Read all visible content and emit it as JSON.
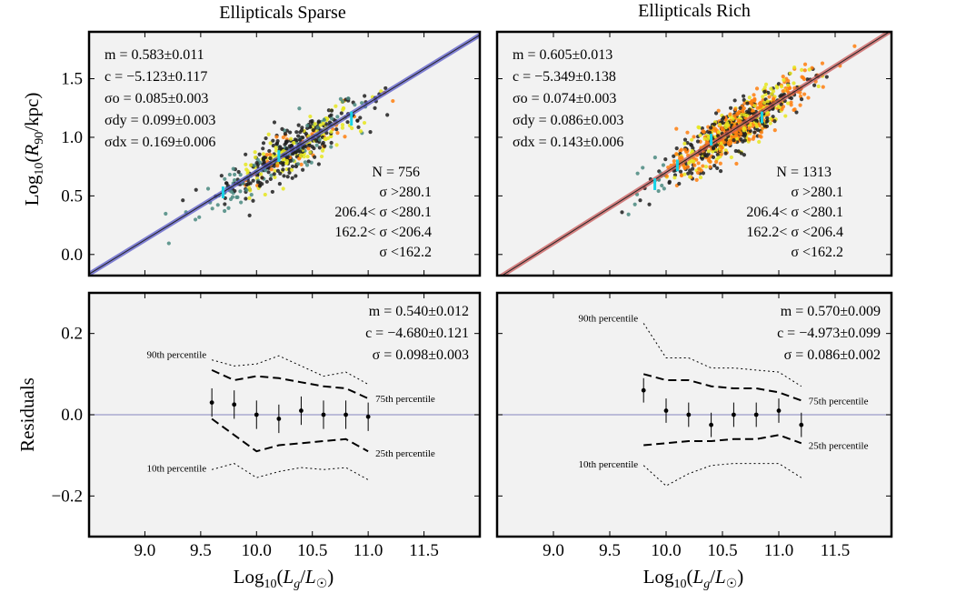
{
  "colors": {
    "panel_bg": "#f2f2f2",
    "sparse_fit": "#5a5ac8",
    "rich_fit": "#c85a5a",
    "zero_line": "#9b9bc8",
    "sigma_high": "#1e1e1e",
    "sigma_mid_high": "#ff7f0e",
    "sigma_mid_low": "#e6e61e",
    "sigma_low": "#1a8a1a",
    "scatter_low": "#4a8a80",
    "error_bar_cyan": "#17d3e6"
  },
  "axis_labels": {
    "x_top": "",
    "x_bottom_left": "Log10(Lg/L☉)",
    "x_bottom_right": "Log10(Lg/L☉)",
    "y_top": "Log10(R90/kpc)",
    "y_bottom": "Residuals"
  },
  "chart_data": [
    {
      "panel": "top-left",
      "type": "scatter",
      "title": "Ellipticals Sparse",
      "xlabel": "",
      "ylabel": "Log10(R90/kpc)",
      "xlim": [
        8.5,
        12.0
      ],
      "ylim": [
        -0.18,
        1.9
      ],
      "x_ticks": [
        9.0,
        9.5,
        10.0,
        10.5,
        11.0,
        11.5
      ],
      "y_ticks": [
        0.0,
        0.5,
        1.0,
        1.5
      ],
      "y_tick_labels": [
        "0.0",
        "0.5",
        "1.0",
        "1.5"
      ],
      "fit": {
        "slope": 0.583,
        "intercept": -5.123
      },
      "stats": [
        "m = 0.583±0.011",
        "c = −5.123±0.117",
        "σo = 0.085±0.003",
        "σdy = 0.099±0.003",
        "σdx = 0.169±0.006"
      ],
      "N": 756,
      "N_label": "N = 756",
      "x_center": 10.3,
      "x_spread": 0.32,
      "scatter_sigma": 0.1,
      "legend": [
        {
          "label": "σ >280.1",
          "color_key": "sigma_high"
        },
        {
          "label": "206.4< σ <280.1",
          "color_key": "sigma_mid_high"
        },
        {
          "label": "162.2< σ <206.4",
          "color_key": "sigma_mid_low"
        },
        {
          "label": "σ <162.2",
          "color_key": "sigma_low"
        }
      ],
      "cyan_bins": [
        {
          "x": 9.7,
          "y": 0.53,
          "err": 0.05
        },
        {
          "x": 10.2,
          "y": 0.84,
          "err": 0.05
        },
        {
          "x": 10.85,
          "y": 1.16,
          "err": 0.06
        }
      ]
    },
    {
      "panel": "top-right",
      "type": "scatter",
      "title": "Ellipticals Rich",
      "xlabel": "",
      "ylabel": "",
      "xlim": [
        8.5,
        12.0
      ],
      "ylim": [
        -0.18,
        1.9
      ],
      "x_ticks": [
        9.0,
        9.5,
        10.0,
        10.5,
        11.0,
        11.5
      ],
      "y_ticks": [
        0.0,
        0.5,
        1.0,
        1.5
      ],
      "y_tick_labels": [
        "",
        "",
        "",
        ""
      ],
      "fit": {
        "slope": 0.605,
        "intercept": -5.349
      },
      "stats": [
        "m = 0.605±0.013",
        "c = −5.349±0.138",
        "σo = 0.074±0.003",
        "σdy = 0.086±0.003",
        "σdx = 0.143±0.006"
      ],
      "N": 1313,
      "N_label": "N = 1313",
      "x_center": 10.6,
      "x_spread": 0.33,
      "scatter_sigma": 0.09,
      "legend": [
        {
          "label": "σ >280.1",
          "color_key": "sigma_high"
        },
        {
          "label": "206.4< σ <280.1",
          "color_key": "sigma_mid_high"
        },
        {
          "label": "162.2< σ <206.4",
          "color_key": "sigma_mid_low"
        },
        {
          "label": "σ <162.2",
          "color_key": "sigma_low"
        }
      ],
      "cyan_bins": [
        {
          "x": 9.9,
          "y": 0.6,
          "err": 0.05
        },
        {
          "x": 10.1,
          "y": 0.76,
          "err": 0.05
        },
        {
          "x": 10.4,
          "y": 0.98,
          "err": 0.05
        },
        {
          "x": 10.85,
          "y": 1.17,
          "err": 0.05
        }
      ]
    },
    {
      "panel": "bottom-left",
      "type": "line",
      "title": "",
      "xlabel": "Log10(Lg/L☉)",
      "ylabel": "Residuals",
      "xlim": [
        8.5,
        12.0
      ],
      "ylim": [
        -0.3,
        0.3
      ],
      "x_ticks": [
        9.0,
        9.5,
        10.0,
        10.5,
        11.0,
        11.5
      ],
      "x_tick_labels": [
        "9.0",
        "9.5",
        "10.0",
        "10.5",
        "11.0",
        "11.5"
      ],
      "y_ticks": [
        -0.2,
        0.0,
        0.2
      ],
      "y_tick_labels": [
        "−0.2",
        "0.0",
        "0.2"
      ],
      "stats": [
        "m = 0.540±0.012",
        "c = −4.680±0.121",
        "σ = 0.098±0.003"
      ],
      "x": [
        9.6,
        9.8,
        10.0,
        10.2,
        10.4,
        10.6,
        10.8,
        11.0
      ],
      "median": [
        0.03,
        0.025,
        0.0,
        -0.01,
        0.01,
        0.0,
        0.0,
        -0.005
      ],
      "error": [
        0.035,
        0.035,
        0.035,
        0.035,
        0.035,
        0.035,
        0.035,
        0.035
      ],
      "p90": [
        0.135,
        0.12,
        0.125,
        0.145,
        0.12,
        0.095,
        0.105,
        0.075
      ],
      "p75": [
        0.11,
        0.085,
        0.095,
        0.09,
        0.08,
        0.07,
        0.065,
        0.04
      ],
      "p25": [
        -0.01,
        -0.05,
        -0.09,
        -0.075,
        -0.07,
        -0.065,
        -0.06,
        -0.09
      ],
      "p10": [
        -0.135,
        -0.12,
        -0.155,
        -0.14,
        -0.13,
        -0.135,
        -0.13,
        -0.16
      ],
      "percentile_labels": {
        "p90": "90th percentile",
        "p75": "75th percentile",
        "p25": "25th percentile",
        "p10": "10th percentile"
      }
    },
    {
      "panel": "bottom-right",
      "type": "line",
      "title": "",
      "xlabel": "Log10(Lg/L☉)",
      "ylabel": "",
      "xlim": [
        8.5,
        12.0
      ],
      "ylim": [
        -0.3,
        0.3
      ],
      "x_ticks": [
        9.0,
        9.5,
        10.0,
        10.5,
        11.0,
        11.5
      ],
      "x_tick_labels": [
        "9.0",
        "9.5",
        "10.0",
        "10.5",
        "11.0",
        "11.5"
      ],
      "y_ticks": [
        -0.2,
        0.0,
        0.2
      ],
      "y_tick_labels": [
        "",
        "",
        ""
      ],
      "stats": [
        "m = 0.570±0.009",
        "c = −4.973±0.099",
        "σ = 0.086±0.002"
      ],
      "x": [
        9.8,
        10.0,
        10.2,
        10.4,
        10.6,
        10.8,
        11.0,
        11.2
      ],
      "median": [
        0.06,
        0.01,
        0.0,
        -0.025,
        0.0,
        0.0,
        0.01,
        -0.025
      ],
      "error": [
        0.03,
        0.03,
        0.03,
        0.03,
        0.03,
        0.03,
        0.03,
        0.03
      ],
      "p90": [
        0.225,
        0.14,
        0.14,
        0.115,
        0.115,
        0.11,
        0.105,
        0.07
      ],
      "p75": [
        0.1,
        0.085,
        0.085,
        0.07,
        0.065,
        0.065,
        0.055,
        0.035
      ],
      "p25": [
        -0.075,
        -0.07,
        -0.065,
        -0.065,
        -0.06,
        -0.06,
        -0.05,
        -0.07
      ],
      "p10": [
        -0.125,
        -0.175,
        -0.145,
        -0.125,
        -0.12,
        -0.12,
        -0.12,
        -0.155
      ],
      "percentile_labels": {
        "p90": "90th percentile",
        "p75": "75th percentile",
        "p25": "25th percentile",
        "p10": "10th percentile"
      }
    }
  ]
}
